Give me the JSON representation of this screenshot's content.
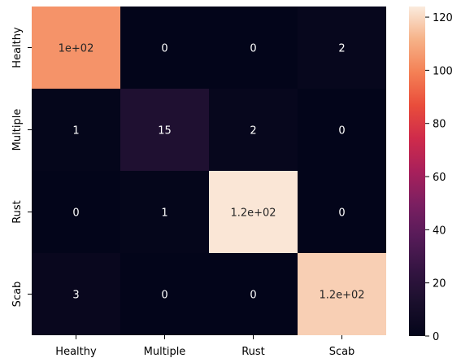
{
  "chart_data": {
    "type": "heatmap",
    "title": "",
    "xlabel": "",
    "ylabel": "",
    "x_categories": [
      "Healthy",
      "Multiple",
      "Rust",
      "Scab"
    ],
    "y_categories": [
      "Healthy",
      "Multiple",
      "Rust",
      "Scab"
    ],
    "values": [
      [
        104,
        0,
        0,
        2
      ],
      [
        1,
        15,
        2,
        0
      ],
      [
        0,
        1,
        123,
        0
      ],
      [
        3,
        0,
        0,
        118
      ]
    ],
    "annotations": [
      [
        "1e+02",
        "0",
        "0",
        "2"
      ],
      [
        "1",
        "15",
        "2",
        "0"
      ],
      [
        "0",
        "1",
        "1.2e+02",
        "0"
      ],
      [
        "3",
        "0",
        "0",
        "1.2e+02"
      ]
    ],
    "colormap": "rocket",
    "colorbar": {
      "min": 0,
      "max": 124,
      "ticks": [
        0,
        20,
        40,
        60,
        80,
        100,
        120
      ],
      "tick_labels": [
        "0",
        "20",
        "40",
        "60",
        "80",
        "100",
        "120"
      ]
    },
    "grid": false,
    "legend": "colorbar-right"
  }
}
